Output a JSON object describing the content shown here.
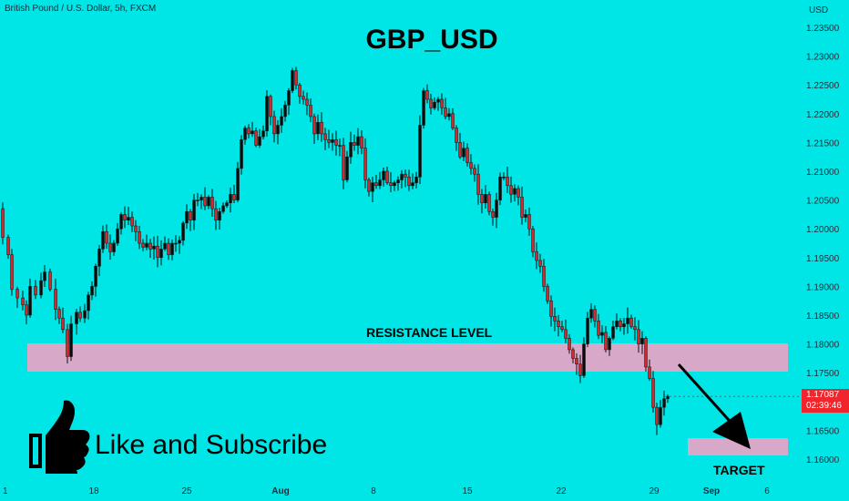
{
  "header": {
    "symbol": "British Pound / U.S. Dollar, 5h, FXCM",
    "title": "GBP_USD"
  },
  "annotations": {
    "resistance_label": "RESISTANCE LEVEL",
    "target_label": "TARGET",
    "cta_text": "Like and Subscribe",
    "cta_icon": "thumbs-up-icon"
  },
  "price_badge": {
    "price": "1.17087",
    "countdown": "02:39:46",
    "color": "#f0262c"
  },
  "colors": {
    "background": "#00e5e5",
    "bull_candle": "#0a0a0a",
    "bear_candle": "#d9262a",
    "zone": "#d8a8c8",
    "arrow": "#000000"
  },
  "chart_data": {
    "type": "candlestick",
    "title": "GBP_USD",
    "currency_label": "USD",
    "y_ticks": [
      "1.23500",
      "1.23000",
      "1.22500",
      "1.22000",
      "1.21500",
      "1.21000",
      "1.20500",
      "1.20000",
      "1.19500",
      "1.19000",
      "1.18500",
      "1.18000",
      "1.17500",
      "1.17000",
      "1.16500",
      "1.16000"
    ],
    "ylim": [
      1.1585,
      1.2368
    ],
    "x_ticks": [
      "18",
      "25",
      "Aug",
      "8",
      "15",
      "22",
      "29",
      "Sep",
      "6"
    ],
    "close_path": [
      [
        0,
        1.2035
      ],
      [
        4,
        1.1985
      ],
      [
        10,
        1.1955
      ],
      [
        14,
        1.1895
      ],
      [
        20,
        1.188
      ],
      [
        26,
        1.1868
      ],
      [
        30,
        1.185
      ],
      [
        34,
        1.19
      ],
      [
        40,
        1.1885
      ],
      [
        46,
        1.191
      ],
      [
        50,
        1.1925
      ],
      [
        56,
        1.1895
      ],
      [
        62,
        1.186
      ],
      [
        66,
        1.1845
      ],
      [
        70,
        1.1825
      ],
      [
        75,
        1.1778
      ],
      [
        79,
        1.1835
      ],
      [
        85,
        1.1855
      ],
      [
        89,
        1.1845
      ],
      [
        94,
        1.1858
      ],
      [
        98,
        1.1885
      ],
      [
        102,
        1.19
      ],
      [
        106,
        1.1935
      ],
      [
        110,
        1.1965
      ],
      [
        114,
        1.1995
      ],
      [
        118,
        1.1975
      ],
      [
        122,
        1.196
      ],
      [
        126,
        1.1975
      ],
      [
        130,
        1.2
      ],
      [
        134,
        1.2025
      ],
      [
        138,
        1.2015
      ],
      [
        142,
        1.202
      ],
      [
        146,
        1.2005
      ],
      [
        150,
        1.1995
      ],
      [
        154,
        1.1975
      ],
      [
        158,
        1.1968
      ],
      [
        162,
        1.1975
      ],
      [
        166,
        1.1965
      ],
      [
        170,
        1.197
      ],
      [
        174,
        1.195
      ],
      [
        178,
        1.1965
      ],
      [
        182,
        1.1975
      ],
      [
        186,
        1.1955
      ],
      [
        190,
        1.1975
      ],
      [
        194,
        1.1975
      ],
      [
        198,
        1.198
      ],
      [
        202,
        1.201
      ],
      [
        206,
        1.203
      ],
      [
        210,
        1.2015
      ],
      [
        214,
        1.205
      ],
      [
        218,
        1.205
      ],
      [
        222,
        1.2055
      ],
      [
        226,
        1.204
      ],
      [
        230,
        1.2055
      ],
      [
        234,
        1.2035
      ],
      [
        238,
        1.2015
      ],
      [
        242,
        1.203
      ],
      [
        246,
        1.204
      ],
      [
        250,
        1.2045
      ],
      [
        254,
        1.206
      ],
      [
        258,
        1.205
      ],
      [
        262,
        1.2105
      ],
      [
        266,
        1.2155
      ],
      [
        270,
        1.2175
      ],
      [
        274,
        1.2165
      ],
      [
        278,
        1.217
      ],
      [
        282,
        1.2145
      ],
      [
        286,
        1.216
      ],
      [
        290,
        1.217
      ],
      [
        294,
        1.223
      ],
      [
        298,
        1.2195
      ],
      [
        302,
        1.2165
      ],
      [
        306,
        1.218
      ],
      [
        310,
        1.2195
      ],
      [
        314,
        1.2215
      ],
      [
        318,
        1.224
      ],
      [
        322,
        1.2275
      ],
      [
        326,
        1.225
      ],
      [
        330,
        1.223
      ],
      [
        334,
        1.2225
      ],
      [
        338,
        1.2215
      ],
      [
        342,
        1.2195
      ],
      [
        346,
        1.2165
      ],
      [
        350,
        1.2185
      ],
      [
        354,
        1.2165
      ],
      [
        358,
        1.2155
      ],
      [
        362,
        1.215
      ],
      [
        366,
        1.2155
      ],
      [
        370,
        1.2145
      ],
      [
        374,
        1.2145
      ],
      [
        378,
        1.2085
      ],
      [
        382,
        1.2125
      ],
      [
        386,
        1.215
      ],
      [
        390,
        1.2145
      ],
      [
        394,
        1.216
      ],
      [
        398,
        1.214
      ],
      [
        402,
        1.2085
      ],
      [
        406,
        1.2065
      ],
      [
        410,
        1.208
      ],
      [
        414,
        1.2075
      ],
      [
        418,
        1.2085
      ],
      [
        422,
        1.21
      ],
      [
        426,
        1.208
      ],
      [
        430,
        1.2075
      ],
      [
        434,
        1.208
      ],
      [
        438,
        1.2085
      ],
      [
        442,
        1.2095
      ],
      [
        446,
        1.209
      ],
      [
        450,
        1.2075
      ],
      [
        454,
        1.208
      ],
      [
        458,
        1.209
      ],
      [
        462,
        1.218
      ],
      [
        466,
        1.224
      ],
      [
        470,
        1.2225
      ],
      [
        474,
        1.221
      ],
      [
        478,
        1.222
      ],
      [
        482,
        1.2225
      ],
      [
        486,
        1.221
      ],
      [
        490,
        1.2195
      ],
      [
        494,
        1.22
      ],
      [
        498,
        1.2175
      ],
      [
        502,
        1.215
      ],
      [
        506,
        1.2125
      ],
      [
        510,
        1.214
      ],
      [
        514,
        1.2115
      ],
      [
        518,
        1.2105
      ],
      [
        522,
        1.2095
      ],
      [
        526,
        1.206
      ],
      [
        530,
        1.2045
      ],
      [
        534,
        1.206
      ],
      [
        538,
        1.203
      ],
      [
        542,
        1.202
      ],
      [
        546,
        1.205
      ],
      [
        550,
        1.209
      ],
      [
        554,
        1.209
      ],
      [
        558,
        1.2075
      ],
      [
        562,
        1.206
      ],
      [
        566,
        1.207
      ],
      [
        570,
        1.2055
      ],
      [
        574,
        1.202
      ],
      [
        578,
        1.2025
      ],
      [
        582,
        1.2
      ],
      [
        586,
        1.196
      ],
      [
        590,
        1.1945
      ],
      [
        594,
        1.1935
      ],
      [
        598,
        1.19
      ],
      [
        602,
        1.1875
      ],
      [
        606,
        1.1848
      ],
      [
        610,
        1.184
      ],
      [
        614,
        1.183
      ],
      [
        618,
        1.1825
      ],
      [
        622,
        1.181
      ],
      [
        626,
        1.179
      ],
      [
        630,
        1.1775
      ],
      [
        634,
        1.1765
      ],
      [
        638,
        1.1745
      ],
      [
        642,
        1.18
      ],
      [
        646,
        1.1845
      ],
      [
        650,
        1.186
      ],
      [
        654,
        1.184
      ],
      [
        658,
        1.1815
      ],
      [
        662,
        1.182
      ],
      [
        666,
        1.179
      ],
      [
        670,
        1.181
      ],
      [
        674,
        1.183
      ],
      [
        678,
        1.184
      ],
      [
        682,
        1.183
      ],
      [
        686,
        1.1835
      ],
      [
        690,
        1.1845
      ],
      [
        694,
        1.183
      ],
      [
        698,
        1.1825
      ],
      [
        702,
        1.18
      ],
      [
        706,
        1.181
      ],
      [
        710,
        1.176
      ],
      [
        714,
        1.174
      ],
      [
        718,
        1.169
      ],
      [
        722,
        1.166
      ],
      [
        726,
        1.169
      ],
      [
        730,
        1.1705
      ],
      [
        734,
        1.1709
      ]
    ],
    "resistance_zone": [
      1.1752,
      1.1802
    ],
    "target_zone": [
      1.1607,
      1.1636
    ],
    "last_price": 1.17087,
    "grid": false,
    "legend": "none"
  }
}
